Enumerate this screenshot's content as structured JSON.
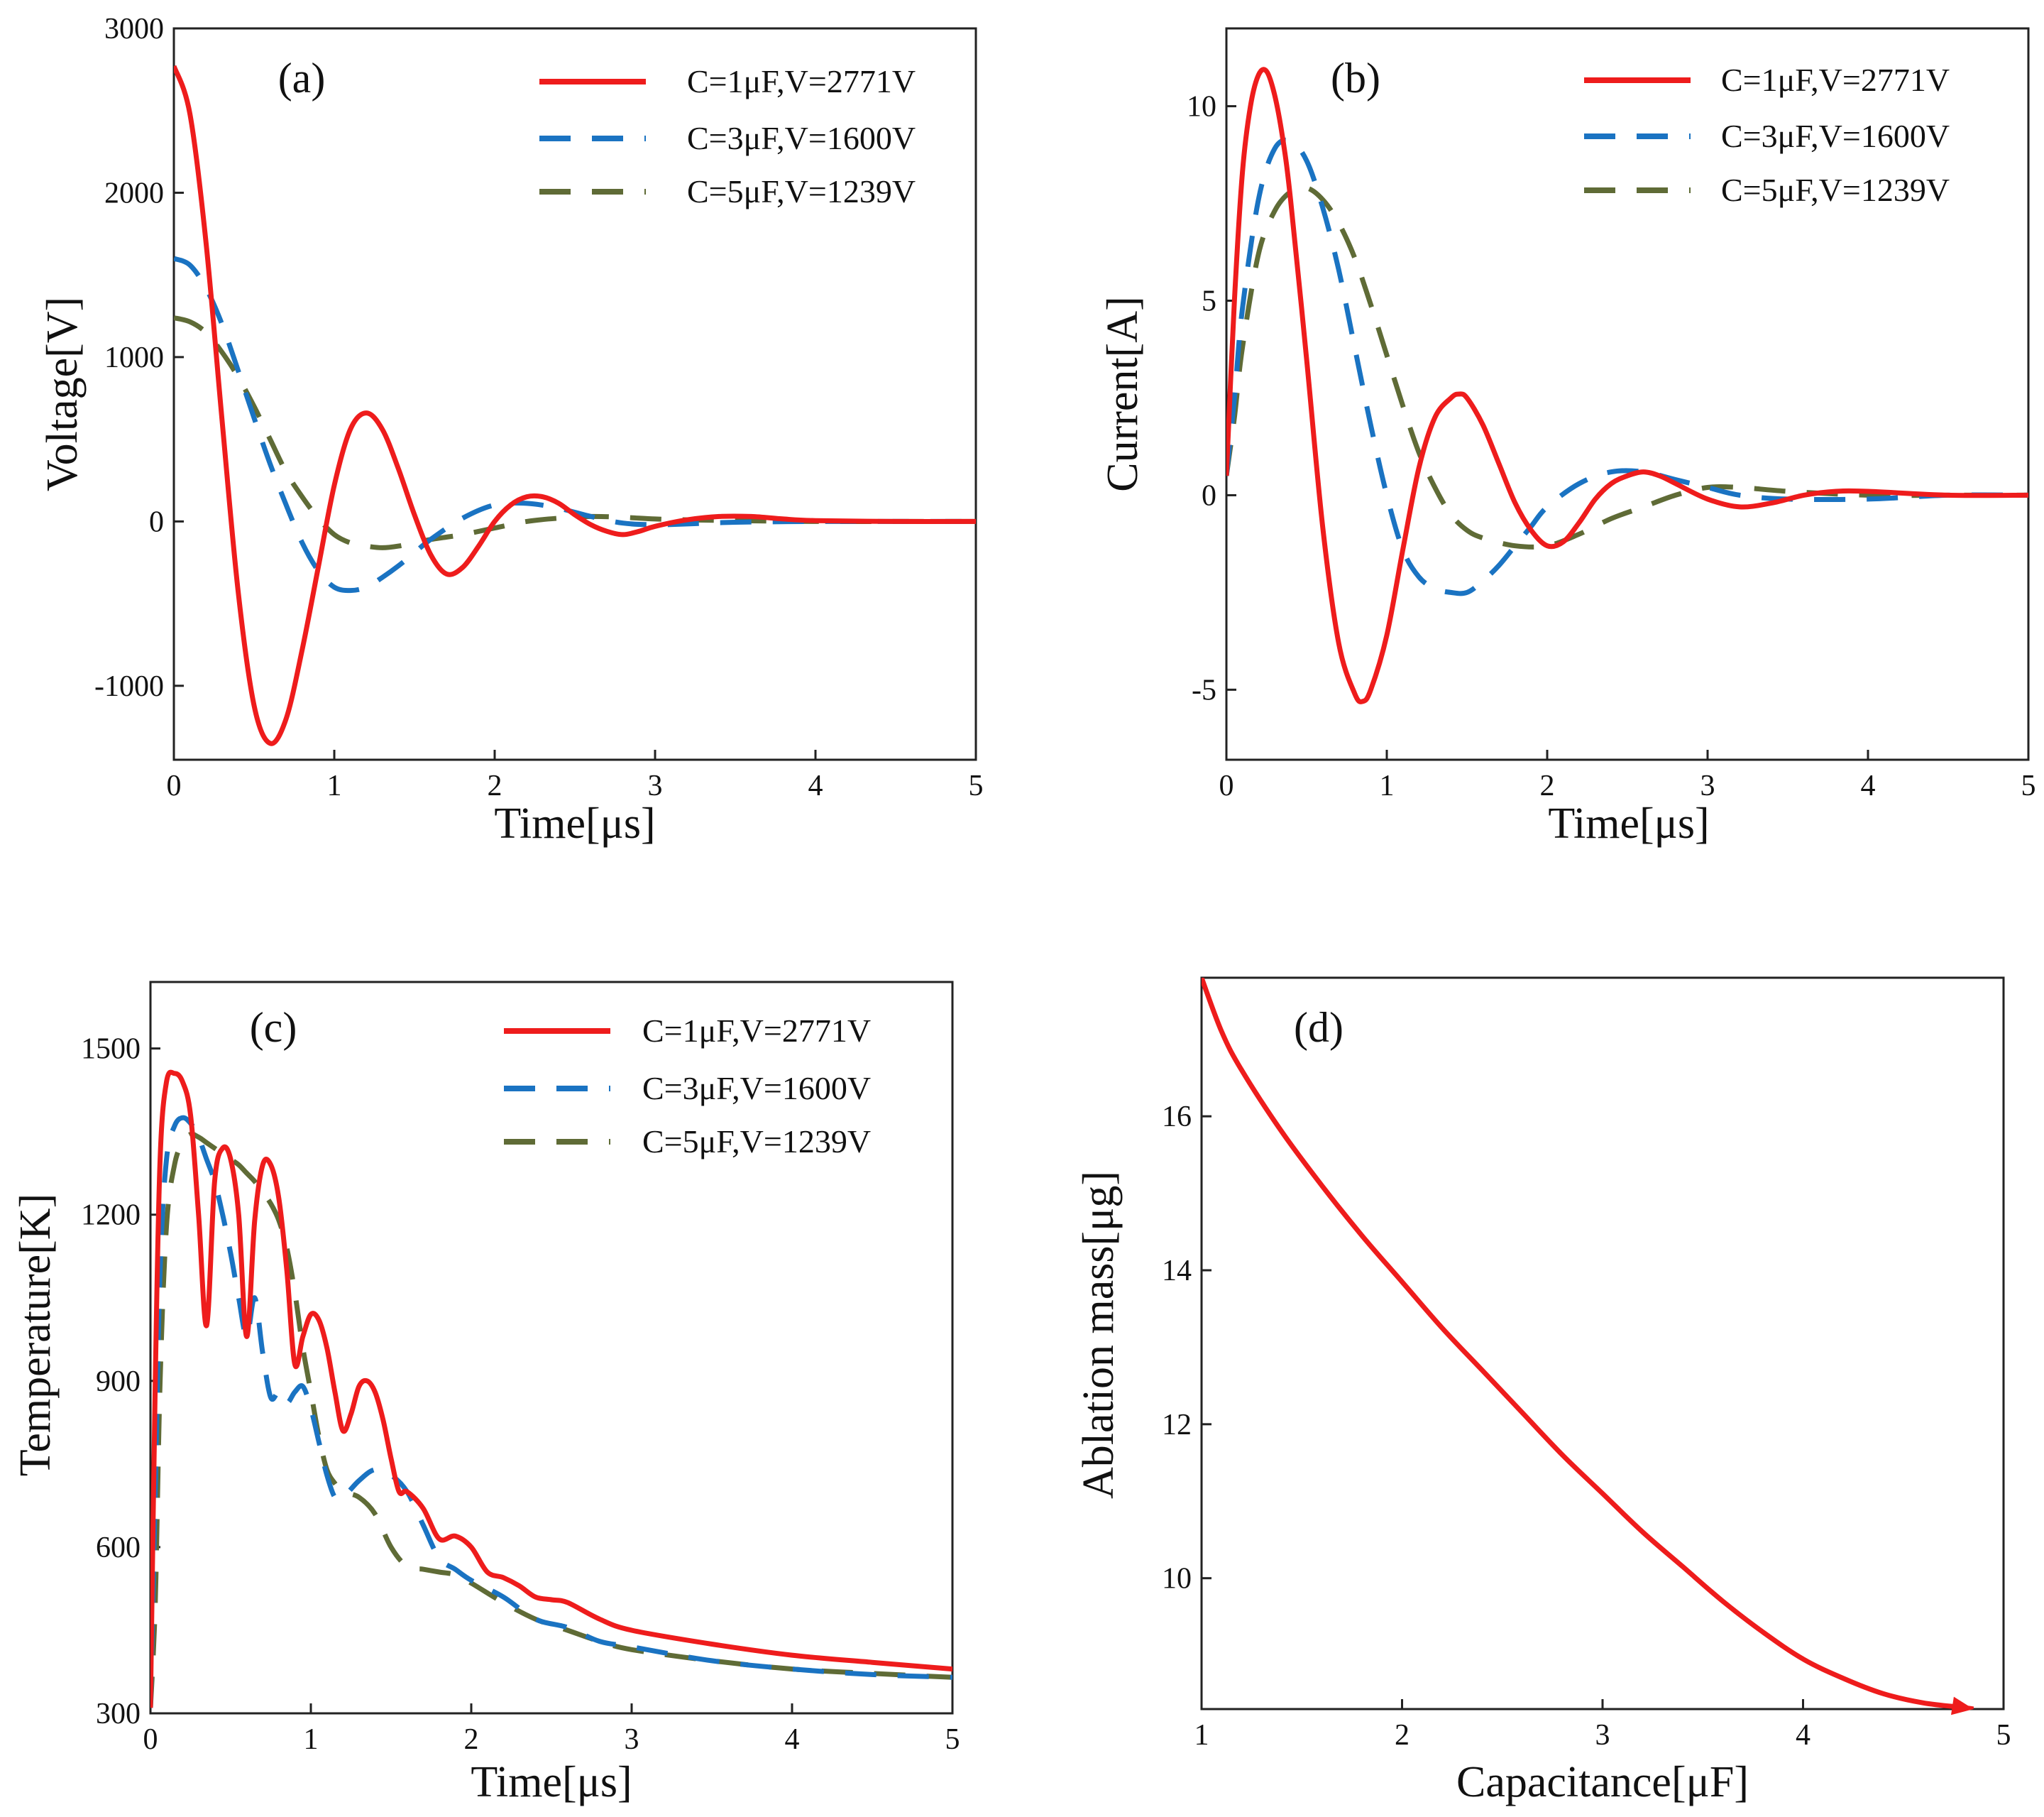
{
  "colors": {
    "red": "#ee1c1c",
    "blue": "#1a73c2",
    "olive": "#5f6b36",
    "axis": "#222222"
  },
  "chart_data": [
    {
      "id": "a",
      "type": "line",
      "panel_label": "(a)",
      "xlabel": "Time[μs]",
      "ylabel": "Voltage[V]",
      "xlim": [
        0,
        5
      ],
      "ylim": [
        -1450,
        3000
      ],
      "xticks": [
        0,
        1,
        2,
        3,
        4,
        5
      ],
      "xtick_labels": [
        "0",
        "1",
        "2",
        "3",
        "4",
        "5"
      ],
      "yticks": [
        -1000,
        0,
        1000,
        2000,
        3000
      ],
      "ytick_labels": [
        "-1000",
        "0",
        "1000",
        "2000",
        "3000"
      ],
      "legend_position": "top-right",
      "series": [
        {
          "name": "C=1μF,V=2771V",
          "color": "red",
          "dash": "solid",
          "x": [
            0,
            0.1,
            0.2,
            0.3,
            0.4,
            0.5,
            0.6,
            0.7,
            0.8,
            0.9,
            1.0,
            1.1,
            1.2,
            1.3,
            1.4,
            1.5,
            1.6,
            1.7,
            1.8,
            1.9,
            2.0,
            2.1,
            2.2,
            2.3,
            2.4,
            2.5,
            2.6,
            2.7,
            2.8,
            2.9,
            3.0,
            3.2,
            3.4,
            3.6,
            3.8,
            4.0,
            4.5,
            5.0
          ],
          "y": [
            2771,
            2480,
            1700,
            620,
            -420,
            -1120,
            -1350,
            -1200,
            -780,
            -280,
            220,
            560,
            660,
            560,
            320,
            40,
            -200,
            -320,
            -280,
            -150,
            0,
            100,
            150,
            150,
            110,
            40,
            -20,
            -60,
            -80,
            -60,
            -30,
            10,
            30,
            30,
            15,
            5,
            0,
            0
          ]
        },
        {
          "name": "C=3μF,V=1600V",
          "color": "blue",
          "dash": "dashed",
          "x": [
            0,
            0.1,
            0.2,
            0.3,
            0.4,
            0.5,
            0.6,
            0.7,
            0.8,
            0.9,
            1.0,
            1.1,
            1.2,
            1.3,
            1.4,
            1.5,
            1.6,
            1.8,
            2.0,
            2.2,
            2.4,
            2.6,
            2.8,
            3.0,
            3.2,
            3.5,
            4.0,
            4.5,
            5.0
          ],
          "y": [
            1600,
            1560,
            1420,
            1200,
            920,
            630,
            350,
            100,
            -130,
            -300,
            -400,
            -420,
            -400,
            -340,
            -270,
            -190,
            -110,
            20,
            100,
            110,
            80,
            30,
            -10,
            -20,
            -15,
            -5,
            0,
            0,
            0
          ]
        },
        {
          "name": "C=5μF,V=1239V",
          "color": "olive",
          "dash": "dashed",
          "x": [
            0,
            0.1,
            0.2,
            0.3,
            0.4,
            0.5,
            0.6,
            0.7,
            0.8,
            0.9,
            1.0,
            1.1,
            1.2,
            1.3,
            1.4,
            1.5,
            1.6,
            1.8,
            2.0,
            2.2,
            2.4,
            2.6,
            2.8,
            3.0,
            3.2,
            3.5,
            4.0,
            4.5,
            5.0
          ],
          "y": [
            1239,
            1215,
            1150,
            1030,
            880,
            700,
            500,
            300,
            150,
            20,
            -80,
            -130,
            -150,
            -160,
            -150,
            -130,
            -110,
            -80,
            -40,
            0,
            20,
            30,
            25,
            15,
            10,
            5,
            0,
            0,
            0
          ]
        }
      ]
    },
    {
      "id": "b",
      "type": "line",
      "panel_label": "(b)",
      "xlabel": "Time[μs]",
      "ylabel": "Current[A]",
      "xlim": [
        0,
        5
      ],
      "ylim": [
        -6.8,
        12.0
      ],
      "xticks": [
        0,
        1,
        2,
        3,
        4,
        5
      ],
      "xtick_labels": [
        "0",
        "1",
        "2",
        "3",
        "4",
        "5"
      ],
      "yticks": [
        -5,
        0,
        5,
        10
      ],
      "ytick_labels": [
        "-5",
        "0",
        "5",
        "10"
      ],
      "legend_position": "top-right",
      "series": [
        {
          "name": "C=1μF,V=2771V",
          "color": "red",
          "dash": "solid",
          "x": [
            0,
            0.05,
            0.1,
            0.15,
            0.2,
            0.25,
            0.3,
            0.35,
            0.4,
            0.5,
            0.6,
            0.7,
            0.8,
            0.85,
            0.9,
            1.0,
            1.1,
            1.2,
            1.3,
            1.4,
            1.45,
            1.5,
            1.6,
            1.7,
            1.8,
            1.9,
            2.0,
            2.1,
            2.2,
            2.3,
            2.4,
            2.5,
            2.6,
            2.7,
            2.8,
            3.0,
            3.2,
            3.4,
            3.6,
            3.8,
            4.0,
            4.5,
            5.0
          ],
          "y": [
            0.5,
            5.0,
            8.3,
            10.0,
            10.8,
            10.9,
            10.3,
            9.2,
            7.6,
            3.5,
            -0.8,
            -3.8,
            -5.1,
            -5.3,
            -5.0,
            -3.6,
            -1.4,
            0.7,
            2.0,
            2.5,
            2.6,
            2.5,
            1.8,
            0.8,
            -0.2,
            -0.9,
            -1.3,
            -1.2,
            -0.7,
            -0.1,
            0.3,
            0.5,
            0.6,
            0.5,
            0.3,
            -0.1,
            -0.3,
            -0.2,
            0.0,
            0.1,
            0.1,
            0,
            0
          ]
        },
        {
          "name": "C=3μF,V=1600V",
          "color": "blue",
          "dash": "dashed",
          "x": [
            0,
            0.05,
            0.1,
            0.2,
            0.3,
            0.4,
            0.5,
            0.6,
            0.7,
            0.8,
            0.9,
            1.0,
            1.1,
            1.2,
            1.3,
            1.4,
            1.5,
            1.6,
            1.7,
            1.8,
            1.9,
            2.0,
            2.2,
            2.4,
            2.6,
            2.8,
            3.0,
            3.2,
            3.5,
            4.0,
            4.5,
            5.0
          ],
          "y": [
            0.5,
            2.5,
            4.8,
            7.6,
            8.9,
            9.1,
            8.6,
            7.4,
            5.8,
            3.8,
            1.8,
            0.0,
            -1.4,
            -2.1,
            -2.4,
            -2.5,
            -2.5,
            -2.2,
            -1.8,
            -1.3,
            -0.8,
            -0.3,
            0.3,
            0.6,
            0.6,
            0.4,
            0.2,
            0.0,
            -0.1,
            -0.1,
            0,
            0
          ]
        },
        {
          "name": "C=5μF,V=1239V",
          "color": "olive",
          "dash": "dashed",
          "x": [
            0,
            0.05,
            0.1,
            0.2,
            0.3,
            0.4,
            0.5,
            0.6,
            0.7,
            0.8,
            0.9,
            1.0,
            1.1,
            1.2,
            1.3,
            1.4,
            1.5,
            1.6,
            1.8,
            2.0,
            2.2,
            2.4,
            2.6,
            2.8,
            3.0,
            3.2,
            3.5,
            4.0,
            4.5,
            5.0
          ],
          "y": [
            0.5,
            2.0,
            3.8,
            6.2,
            7.3,
            7.8,
            7.9,
            7.6,
            7.0,
            6.1,
            4.9,
            3.6,
            2.3,
            1.1,
            0.2,
            -0.5,
            -0.9,
            -1.1,
            -1.3,
            -1.3,
            -1.0,
            -0.6,
            -0.3,
            0.0,
            0.2,
            0.2,
            0.1,
            0.0,
            0,
            0
          ]
        }
      ]
    },
    {
      "id": "c",
      "type": "line",
      "panel_label": "(c)",
      "xlabel": "Time[μs]",
      "ylabel": "Temperature[K]",
      "xlim": [
        0,
        5
      ],
      "ylim": [
        300,
        1620
      ],
      "xticks": [
        0,
        1,
        2,
        3,
        4,
        5
      ],
      "xtick_labels": [
        "0",
        "1",
        "2",
        "3",
        "4",
        "5"
      ],
      "yticks": [
        300,
        600,
        900,
        1200,
        1500
      ],
      "ytick_labels": [
        "300",
        "600",
        "900",
        "1200",
        "1500"
      ],
      "legend_position": "top-right",
      "series": [
        {
          "name": "C=1μF,V=2771V",
          "color": "red",
          "dash": "solid",
          "x": [
            0,
            0.03,
            0.06,
            0.1,
            0.15,
            0.2,
            0.25,
            0.3,
            0.35,
            0.4,
            0.45,
            0.5,
            0.55,
            0.6,
            0.65,
            0.7,
            0.75,
            0.8,
            0.85,
            0.9,
            0.95,
            1.0,
            1.05,
            1.1,
            1.15,
            1.2,
            1.25,
            1.3,
            1.35,
            1.4,
            1.45,
            1.5,
            1.55,
            1.6,
            1.7,
            1.8,
            1.9,
            2.0,
            2.1,
            2.2,
            2.3,
            2.4,
            2.5,
            2.6,
            2.8,
            3.0,
            3.5,
            4.0,
            4.5,
            5.0
          ],
          "y": [
            310,
            900,
            1300,
            1440,
            1455,
            1440,
            1380,
            1200,
            1000,
            1260,
            1320,
            1300,
            1200,
            980,
            1190,
            1290,
            1290,
            1230,
            1100,
            930,
            980,
            1020,
            1010,
            960,
            880,
            810,
            840,
            890,
            900,
            880,
            830,
            760,
            700,
            700,
            670,
            615,
            620,
            600,
            555,
            545,
            530,
            510,
            505,
            500,
            470,
            450,
            425,
            405,
            392,
            380
          ]
        },
        {
          "name": "C=3μF,V=1600V",
          "color": "blue",
          "dash": "dashed",
          "x": [
            0,
            0.03,
            0.06,
            0.1,
            0.15,
            0.2,
            0.25,
            0.3,
            0.35,
            0.4,
            0.45,
            0.5,
            0.55,
            0.6,
            0.65,
            0.7,
            0.75,
            0.8,
            0.85,
            0.9,
            0.95,
            1.0,
            1.05,
            1.1,
            1.15,
            1.2,
            1.3,
            1.4,
            1.5,
            1.6,
            1.7,
            1.8,
            1.9,
            2.0,
            2.2,
            2.4,
            2.6,
            2.8,
            3.0,
            3.5,
            4.0,
            4.5,
            5.0
          ],
          "y": [
            310,
            700,
            1100,
            1300,
            1360,
            1375,
            1365,
            1340,
            1300,
            1260,
            1200,
            1130,
            1050,
            980,
            1050,
            950,
            870,
            880,
            860,
            880,
            890,
            850,
            790,
            730,
            690,
            690,
            720,
            740,
            730,
            700,
            640,
            580,
            560,
            540,
            510,
            470,
            455,
            430,
            420,
            395,
            380,
            370,
            365
          ]
        },
        {
          "name": "C=5μF,V=1239V",
          "color": "olive",
          "dash": "dashed",
          "x": [
            0,
            0.03,
            0.06,
            0.1,
            0.15,
            0.2,
            0.25,
            0.3,
            0.35,
            0.4,
            0.45,
            0.5,
            0.55,
            0.6,
            0.65,
            0.7,
            0.75,
            0.8,
            0.85,
            0.9,
            0.95,
            1.0,
            1.05,
            1.1,
            1.15,
            1.2,
            1.3,
            1.4,
            1.5,
            1.6,
            1.7,
            1.8,
            1.9,
            2.0,
            2.2,
            2.4,
            2.6,
            2.8,
            3.0,
            3.5,
            4.0,
            4.5,
            5.0
          ],
          "y": [
            310,
            500,
            900,
            1180,
            1290,
            1330,
            1345,
            1340,
            1330,
            1320,
            1310,
            1300,
            1290,
            1275,
            1260,
            1240,
            1220,
            1190,
            1140,
            1060,
            960,
            880,
            800,
            740,
            715,
            700,
            690,
            660,
            600,
            565,
            560,
            555,
            550,
            535,
            500,
            470,
            450,
            430,
            415,
            395,
            380,
            372,
            365
          ]
        }
      ]
    },
    {
      "id": "d",
      "type": "line",
      "panel_label": "(d)",
      "xlabel": "Capacitance[μF]",
      "ylabel": "Ablation mass[μg]",
      "xlim": [
        1,
        5
      ],
      "ylim": [
        8.3,
        17.8
      ],
      "xticks": [
        1,
        2,
        3,
        4,
        5
      ],
      "xtick_labels": [
        "1",
        "2",
        "3",
        "4",
        "5"
      ],
      "yticks": [
        10,
        12,
        14,
        16
      ],
      "ytick_labels": [
        "10",
        "12",
        "14",
        "16"
      ],
      "legend_position": "none",
      "series": [
        {
          "name": "Ablation mass",
          "color": "red",
          "dash": "solid",
          "arrow_end": true,
          "x": [
            1.0,
            1.1,
            1.2,
            1.4,
            1.6,
            1.8,
            2.0,
            2.2,
            2.4,
            2.6,
            2.8,
            3.0,
            3.2,
            3.4,
            3.6,
            3.8,
            4.0,
            4.2,
            4.4,
            4.6,
            4.8,
            4.85
          ],
          "y": [
            17.8,
            17.1,
            16.6,
            15.8,
            15.1,
            14.45,
            13.85,
            13.25,
            12.7,
            12.15,
            11.6,
            11.1,
            10.6,
            10.15,
            9.7,
            9.3,
            8.95,
            8.7,
            8.5,
            8.38,
            8.32,
            8.3
          ]
        }
      ]
    }
  ]
}
